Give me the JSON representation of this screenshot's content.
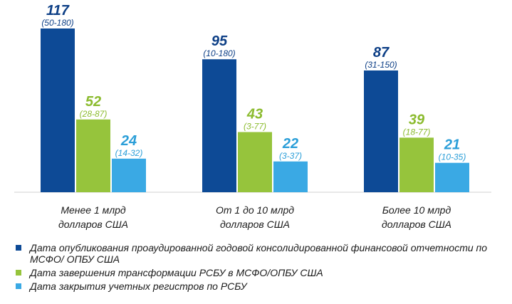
{
  "chart_data": {
    "type": "bar",
    "categories": [
      [
        "Менее 1 млрд",
        "долларов США"
      ],
      [
        "От 1 до 10 млрд",
        "долларов США"
      ],
      [
        "Более 10 млрд",
        "долларов США"
      ]
    ],
    "series": [
      {
        "name": "Дата опубликования проаудированной годовой консолидированной финансовой отчетности по МСФО/ ОПБУ США",
        "color": "#0d4a96",
        "values": [
          117,
          95,
          87
        ],
        "ranges": [
          "(50-180)",
          "(10-180)",
          "(31-150)"
        ]
      },
      {
        "name": "Дата завершения трансформации РСБУ в МСФО/ОПБУ США",
        "color": "#96c43c",
        "values": [
          52,
          43,
          39
        ],
        "ranges": [
          "(28-87)",
          "(3-77)",
          "(18-77)"
        ]
      },
      {
        "name": "Дата закрытия учетных регистров по РСБУ",
        "color": "#3aa9e4",
        "values": [
          24,
          22,
          21
        ],
        "ranges": [
          "(14-32)",
          "(3-37)",
          "(10-35)"
        ]
      }
    ],
    "ylim": [
      0,
      120
    ],
    "grid": false,
    "legend": "bottom",
    "label_colors": [
      "#0d3f86",
      "#8bbb2e",
      "#2a9ed8"
    ]
  }
}
